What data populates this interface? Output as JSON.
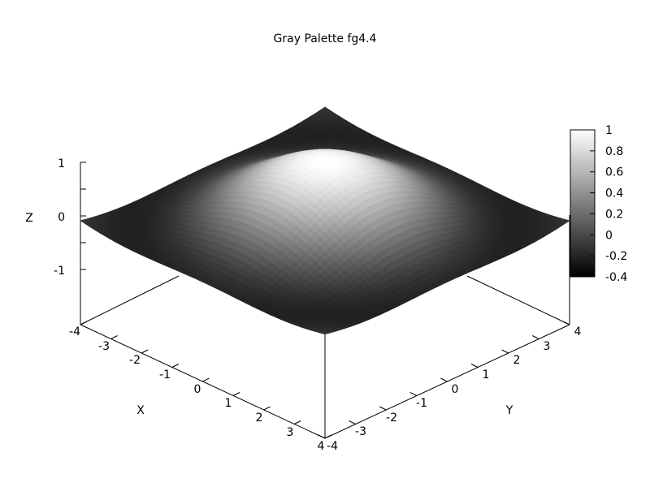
{
  "chart_data": {
    "type": "surface",
    "title": "Gray Palette fg4.4",
    "xlabel": "X",
    "ylabel": "Y",
    "zlabel": "Z",
    "xlim": [
      -4,
      4
    ],
    "ylim": [
      -4,
      4
    ],
    "zlim": [
      -2,
      1
    ],
    "x_ticks": [
      "-4",
      "-3",
      "-2",
      "-1",
      "0",
      "1",
      "2",
      "3",
      "4"
    ],
    "y_ticks": [
      "-4",
      "-3",
      "-2",
      "-1",
      "0",
      "1",
      "2",
      "3",
      "4"
    ],
    "z_ticks": [
      "1",
      "0",
      "-1"
    ],
    "colorbar": {
      "ticks": [
        "1",
        "0.8",
        "0.6",
        "0.4",
        "0.2",
        "0",
        "-0.2",
        "-0.4"
      ],
      "min": -0.4,
      "max": 1,
      "palette": "gray"
    },
    "surface_function": "sin(sqrt(x^2+y^2))/sqrt(x^2+y^2)",
    "samples": 25
  }
}
